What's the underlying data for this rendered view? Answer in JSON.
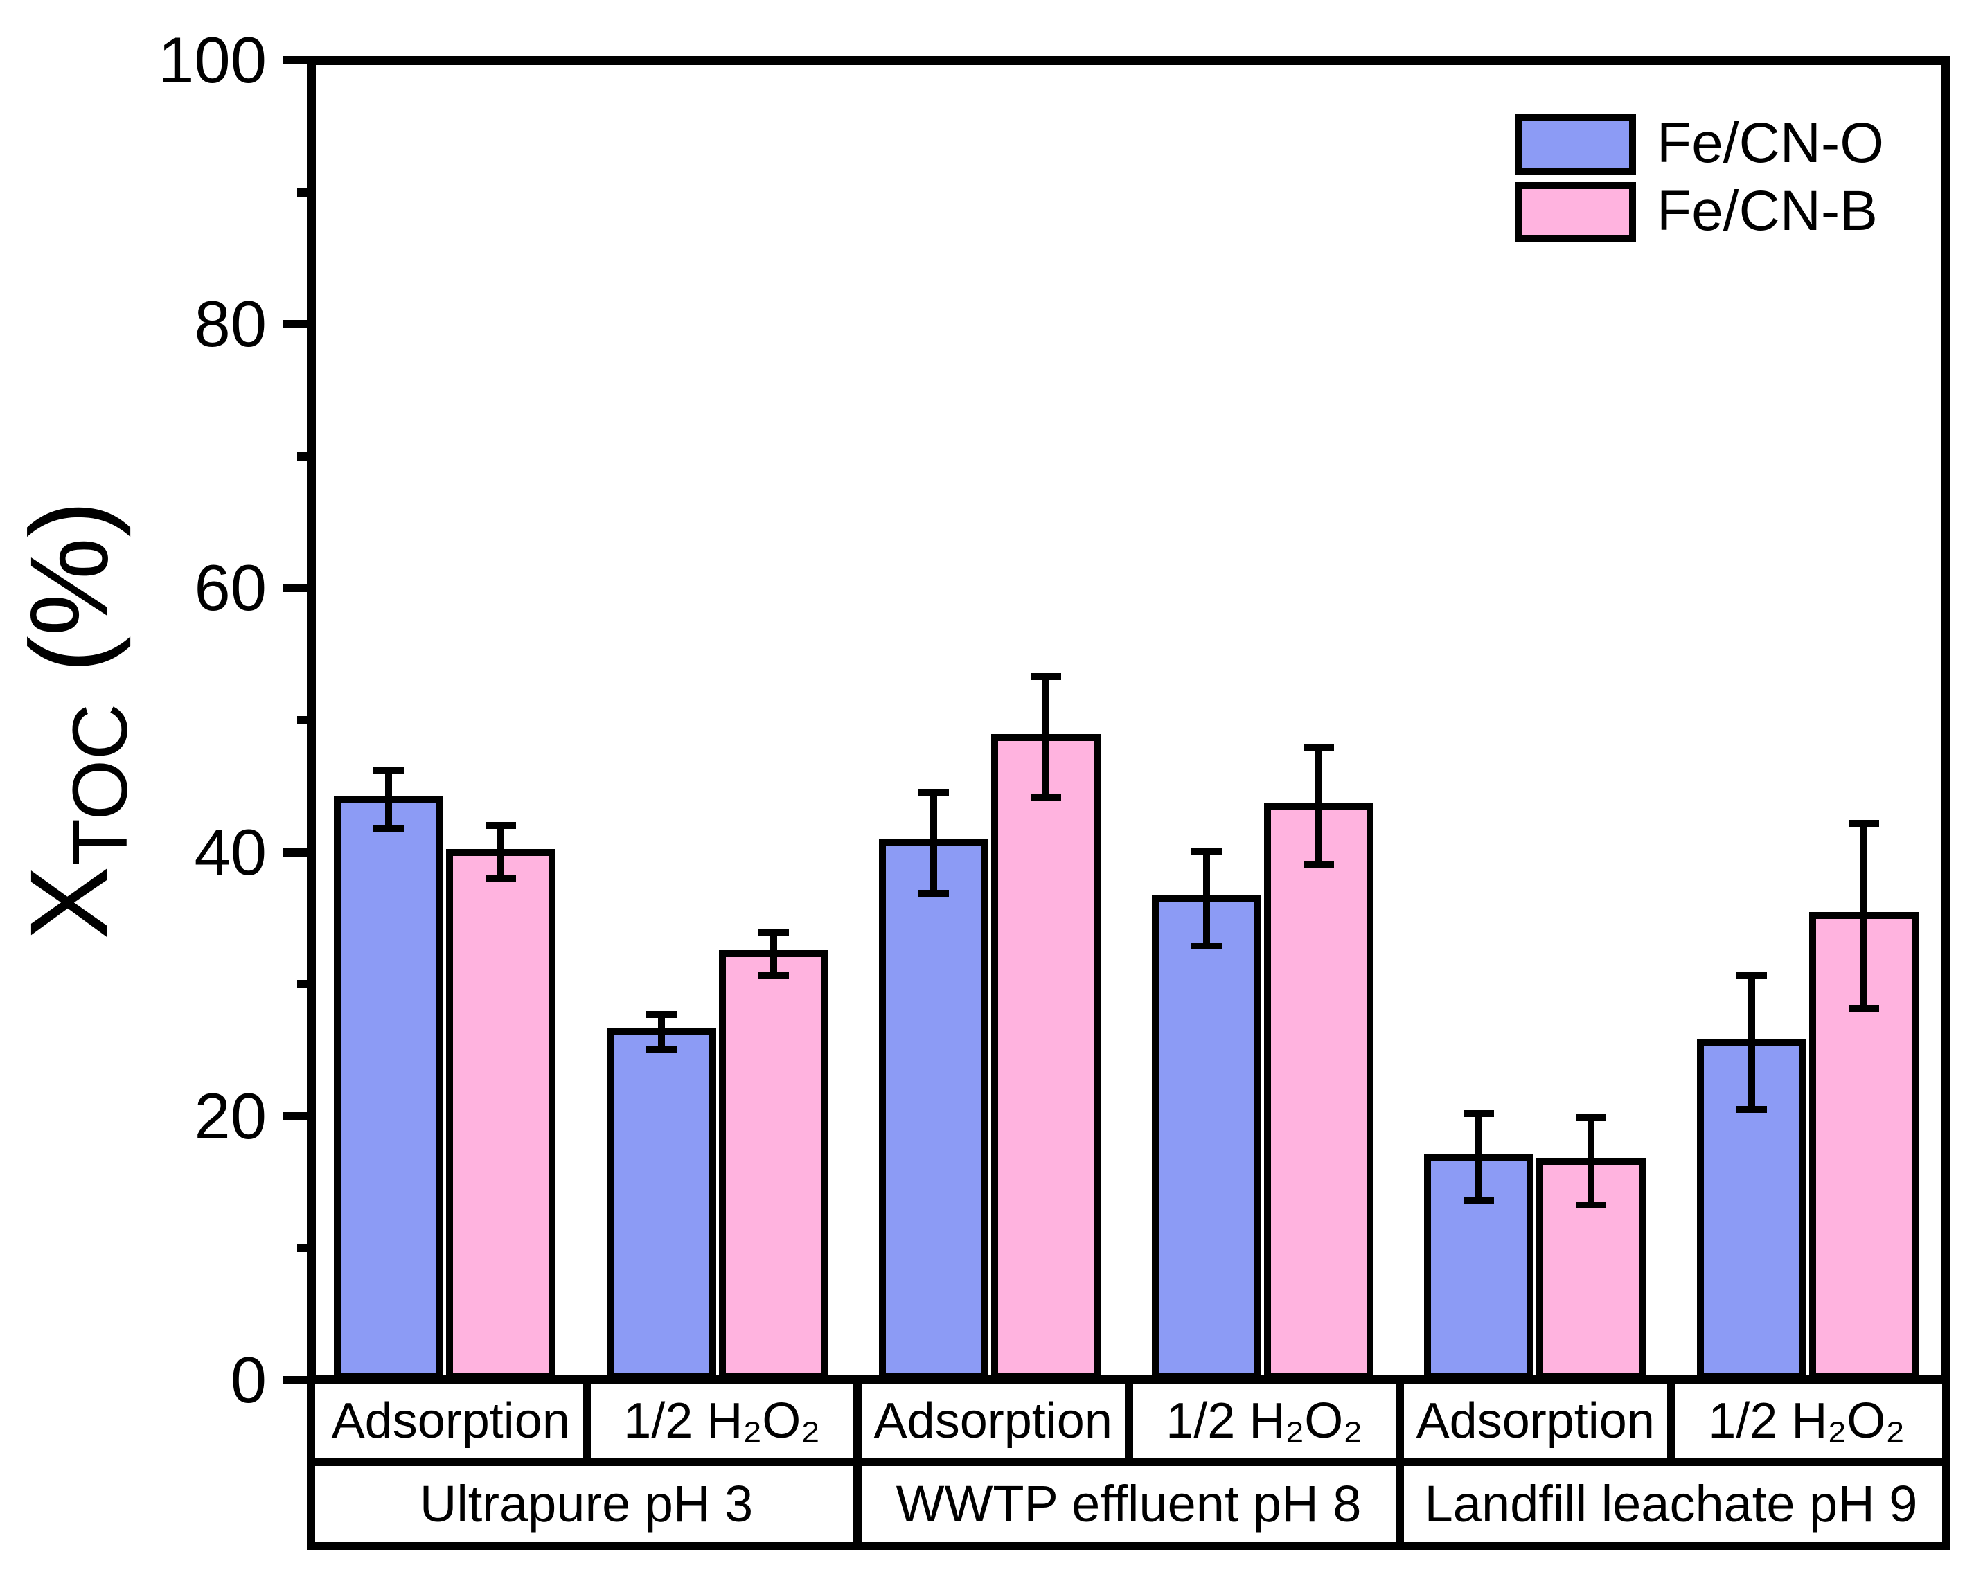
{
  "chart_data": {
    "type": "bar",
    "title": "",
    "ylabel": {
      "main": "X",
      "sub": "TOC",
      "unit": " (%)"
    },
    "ylim": [
      0,
      100
    ],
    "grid": false,
    "legend_position": "top-right",
    "yticks_labels": [
      "0",
      "20",
      "40",
      "60",
      "80",
      "100"
    ],
    "yticks_major": [
      0,
      20,
      40,
      60,
      80,
      100
    ],
    "yticks_minor": [
      10,
      30,
      50,
      70,
      90
    ],
    "legend": {
      "entries": [
        {
          "label": "Fe/CN-O",
          "color": "#8C9BF5"
        },
        {
          "label": "Fe/CN-B",
          "color": "#FFB3DF"
        }
      ]
    },
    "groups": [
      {
        "label": "Ultrapure pH 3",
        "conditions": [
          "Adsorption",
          "1/2 H₂O₂"
        ]
      },
      {
        "label": "WWTP effluent pH 8",
        "conditions": [
          "Adsorption",
          "1/2 H₂O₂"
        ]
      },
      {
        "label": "Landfill leachate pH 9",
        "conditions": [
          "Adsorption",
          "1/2 H₂O₂"
        ]
      }
    ],
    "categories": [
      "Adsorption",
      "1/2 H₂O₂",
      "Adsorption",
      "1/2 H₂O₂",
      "Adsorption",
      "1/2 H₂O₂"
    ],
    "series": [
      {
        "name": "Fe/CN-O",
        "color": "#8C9BF5",
        "values": [
          44.0,
          26.4,
          40.7,
          36.5,
          16.9,
          25.6
        ],
        "errors": [
          2.2,
          1.3,
          3.8,
          3.6,
          3.3,
          5.1
        ]
      },
      {
        "name": "Fe/CN-B",
        "color": "#FFB3DF",
        "values": [
          40.0,
          32.3,
          48.7,
          43.5,
          16.6,
          35.2
        ],
        "errors": [
          2.0,
          1.6,
          4.6,
          4.4,
          3.3,
          7.0
        ]
      }
    ]
  }
}
